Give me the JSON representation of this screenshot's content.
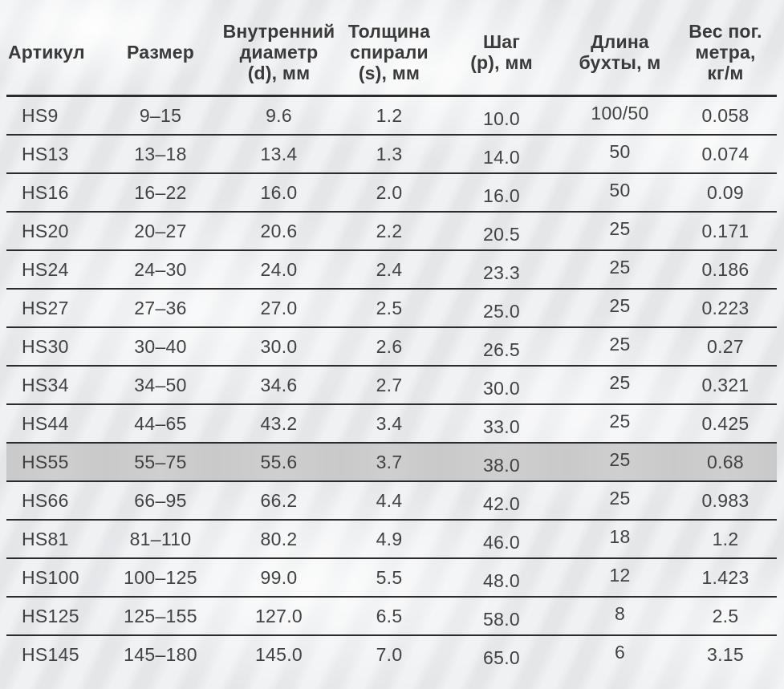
{
  "theme": {
    "background_color": "#eaecee",
    "text_color": "#424242",
    "header_text_color": "#3a3a3a",
    "rule_color": "#2b2b2b",
    "highlight_row_bg": "#c9c9c9"
  },
  "table": {
    "columns": [
      {
        "key": "article",
        "label": "Артикул"
      },
      {
        "key": "size",
        "label": "Размер"
      },
      {
        "key": "inner_diameter",
        "label": "Внутренний\nдиаметр\n(d), мм"
      },
      {
        "key": "spiral_thickness",
        "label": "Толщина\nспирали\n(s), мм"
      },
      {
        "key": "pitch",
        "label": "Шаг\n(p), мм"
      },
      {
        "key": "coil_length",
        "label": "Длина\nбухты, м"
      },
      {
        "key": "weight_per_meter",
        "label": "Вес пог.\nметра,\nкг/м"
      }
    ],
    "highlighted_article": "HS55",
    "rows": [
      [
        "HS9",
        "9–15",
        "9.6",
        "1.2",
        "10.0",
        "100/50",
        "0.058"
      ],
      [
        "HS13",
        "13–18",
        "13.4",
        "1.3",
        "14.0",
        "50",
        "0.074"
      ],
      [
        "HS16",
        "16–22",
        "16.0",
        "2.0",
        "16.0",
        "50",
        "0.09"
      ],
      [
        "HS20",
        "20–27",
        "20.6",
        "2.2",
        "20.5",
        "25",
        "0.171"
      ],
      [
        "HS24",
        "24–30",
        "24.0",
        "2.4",
        "23.3",
        "25",
        "0.186"
      ],
      [
        "HS27",
        "27–36",
        "27.0",
        "2.5",
        "25.0",
        "25",
        "0.223"
      ],
      [
        "HS30",
        "30–40",
        "30.0",
        "2.6",
        "26.5",
        "25",
        "0.27"
      ],
      [
        "HS34",
        "34–50",
        "34.6",
        "2.7",
        "30.0",
        "25",
        "0.321"
      ],
      [
        "HS44",
        "44–65",
        "43.2",
        "3.4",
        "33.0",
        "25",
        "0.425"
      ],
      [
        "HS55",
        "55–75",
        "55.6",
        "3.7",
        "38.0",
        "25",
        "0.68"
      ],
      [
        "HS66",
        "66–95",
        "66.2",
        "4.4",
        "42.0",
        "25",
        "0.983"
      ],
      [
        "HS81",
        "81–110",
        "80.2",
        "4.9",
        "46.0",
        "18",
        "1.2"
      ],
      [
        "HS100",
        "100–125",
        "99.0",
        "5.5",
        "48.0",
        "12",
        "1.423"
      ],
      [
        "HS125",
        "125–155",
        "127.0",
        "6.5",
        "58.0",
        "8",
        "2.5"
      ],
      [
        "HS145",
        "145–180",
        "145.0",
        "7.0",
        "65.0",
        "6",
        "3.15"
      ]
    ]
  }
}
